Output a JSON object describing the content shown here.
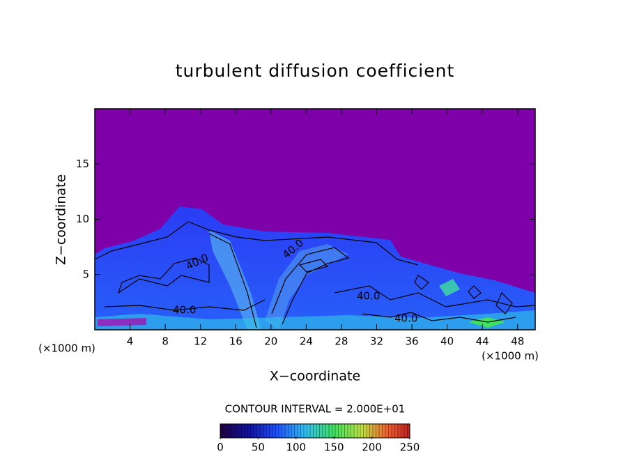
{
  "chart_data": {
    "type": "contour",
    "title": "turbulent diffusion coefficient",
    "xlabel": "X−coordinate",
    "ylabel": "Z−coordinate",
    "x_unit_label": "(×1000 m)",
    "y_unit_label": "(×1000 m)",
    "xlim": [
      0,
      50
    ],
    "xticks": [
      4,
      8,
      12,
      16,
      20,
      24,
      28,
      32,
      36,
      40,
      44,
      48
    ],
    "ylim": [
      0,
      20
    ],
    "yticks": [
      5,
      10,
      15
    ],
    "contour_labels": [
      "40.0",
      "40.0",
      "40.0",
      "40.0",
      "40.0"
    ],
    "contour_interval_label": "CONTOUR INTERVAL = 2.000E+01",
    "colorbar": {
      "lim": [
        0,
        250
      ],
      "ticks": [
        0,
        50,
        100,
        150,
        200,
        250
      ]
    }
  }
}
